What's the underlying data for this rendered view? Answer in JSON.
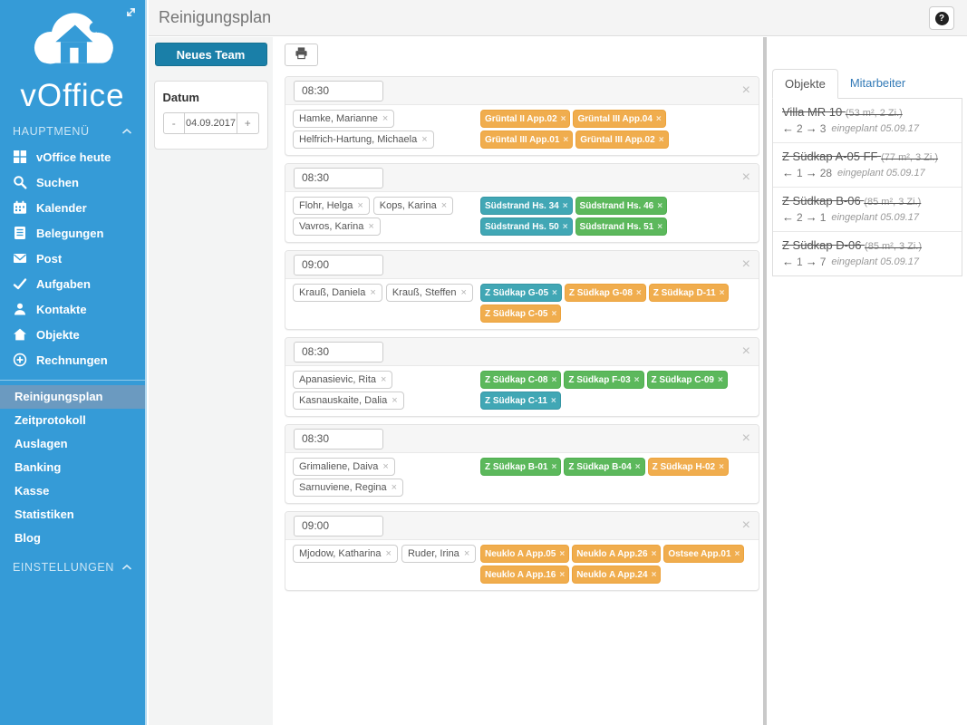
{
  "header": {
    "title": "Reinigungsplan",
    "help_icon": "help-icon"
  },
  "sidebar": {
    "brand": "vOffice",
    "logo_icon": "cloud-house-logo",
    "expand_icon": "expand-arrows-icon",
    "main_section": {
      "label": "HAUPTMENÜ",
      "collapse_icon": "chevron-up-icon"
    },
    "main_items": [
      {
        "icon": "grid-icon",
        "label": "vOffice heute"
      },
      {
        "icon": "search-icon",
        "label": "Suchen"
      },
      {
        "icon": "calendar-icon",
        "label": "Kalender"
      },
      {
        "icon": "document-icon",
        "label": "Belegungen"
      },
      {
        "icon": "mail-icon",
        "label": "Post"
      },
      {
        "icon": "check-icon",
        "label": "Aufgaben"
      },
      {
        "icon": "user-icon",
        "label": "Kontakte"
      },
      {
        "icon": "home-icon",
        "label": "Objekte"
      },
      {
        "icon": "plus-circle-icon",
        "label": "Rechnungen"
      }
    ],
    "sub_items": [
      {
        "label": "Reinigungsplan",
        "active": true
      },
      {
        "label": "Zeitprotokoll",
        "active": false
      },
      {
        "label": "Auslagen",
        "active": false
      },
      {
        "label": "Banking",
        "active": false
      },
      {
        "label": "Kasse",
        "active": false
      },
      {
        "label": "Statistiken",
        "active": false
      },
      {
        "label": "Blog",
        "active": false
      }
    ],
    "settings_section": {
      "label": "EINSTELLUNGEN",
      "collapse_icon": "chevron-up-icon"
    }
  },
  "toolbar": {
    "new_team_label": "Neues Team",
    "print_icon": "printer-icon"
  },
  "date_filter": {
    "label": "Datum",
    "value": "04.09.2017",
    "decrement_label": "-",
    "increment_label": "+"
  },
  "teams": [
    {
      "time": "08:30",
      "members": [
        "Hamke, Marianne",
        "Helfrich-Hartung, Michaela"
      ],
      "objects": [
        {
          "label": "Grüntal II App.02",
          "color": "orange"
        },
        {
          "label": "Grüntal III App.04",
          "color": "orange"
        },
        {
          "label": "Grüntal III App.01",
          "color": "orange"
        },
        {
          "label": "Grüntal III App.02",
          "color": "orange"
        }
      ]
    },
    {
      "time": "08:30",
      "members": [
        "Flohr, Helga",
        "Kops, Karina",
        "Vavros, Karina"
      ],
      "objects": [
        {
          "label": "Südstrand Hs. 34",
          "color": "teal"
        },
        {
          "label": "Südstrand Hs. 46",
          "color": "green"
        },
        {
          "label": "Südstrand Hs. 50",
          "color": "teal"
        },
        {
          "label": "Südstrand Hs. 51",
          "color": "green"
        }
      ]
    },
    {
      "time": "09:00",
      "members": [
        "Krauß, Daniela",
        "Krauß, Steffen"
      ],
      "objects": [
        {
          "label": "Z Südkap G-05",
          "color": "teal"
        },
        {
          "label": "Z Südkap G-08",
          "color": "orange"
        },
        {
          "label": "Z Südkap D-11",
          "color": "orange"
        },
        {
          "label": "Z Südkap C-05",
          "color": "orange"
        }
      ]
    },
    {
      "time": "08:30",
      "members": [
        "Apanasievic, Rita",
        "Kasnauskaite, Dalia"
      ],
      "objects": [
        {
          "label": "Z Südkap C-08",
          "color": "green"
        },
        {
          "label": "Z Südkap F-03",
          "color": "green"
        },
        {
          "label": "Z Südkap C-09",
          "color": "green"
        },
        {
          "label": "Z Südkap C-11",
          "color": "teal"
        }
      ]
    },
    {
      "time": "08:30",
      "members": [
        "Grimaliene, Daiva",
        "Sarnuviene, Regina"
      ],
      "objects": [
        {
          "label": "Z Südkap B-01",
          "color": "green"
        },
        {
          "label": "Z Südkap B-04",
          "color": "green"
        },
        {
          "label": "Z Südkap H-02",
          "color": "orange"
        }
      ]
    },
    {
      "time": "09:00",
      "members": [
        "Mjodow, Katharina",
        "Ruder, Irina"
      ],
      "objects": [
        {
          "label": "Neuklo A App.05",
          "color": "orange"
        },
        {
          "label": "Neuklo A App.26",
          "color": "orange"
        },
        {
          "label": "Ostsee App.01",
          "color": "orange"
        },
        {
          "label": "Neuklo A App.16",
          "color": "orange"
        },
        {
          "label": "Neuklo A App.24",
          "color": "orange"
        }
      ]
    }
  ],
  "right_panel": {
    "tabs": [
      {
        "label": "Objekte",
        "active": true
      },
      {
        "label": "Mitarbeiter",
        "active": false
      }
    ],
    "objects": [
      {
        "name": "Villa MR 10",
        "details": "(53 m², 2 Zi.)",
        "prev_count": "2",
        "next_count": "3",
        "note": "eingeplant 05.09.17"
      },
      {
        "name": "Z Südkap A-05 FF",
        "details": "(77 m², 3 Zi.)",
        "prev_count": "1",
        "next_count": "28",
        "note": "eingeplant 05.09.17"
      },
      {
        "name": "Z Südkap B-06",
        "details": "(85 m², 3 Zi.)",
        "prev_count": "2",
        "next_count": "1",
        "note": "eingeplant 05.09.17"
      },
      {
        "name": "Z Südkap D-06",
        "details": "(85 m², 3 Zi.)",
        "prev_count": "1",
        "next_count": "7",
        "note": "eingeplant 05.09.17"
      }
    ]
  },
  "colors": {
    "sidebar_blue": "#359bd7",
    "sidebar_selected": "#6b9ac0",
    "accent_teal": "#1a7fa8",
    "tag_orange": "#f0ad4e",
    "tag_orange_border": "#eca23b",
    "tag_green": "#5cb85c",
    "tag_green_border": "#4eae4e",
    "tag_teal": "#41a7b5",
    "tag_teal_border": "#3696a4",
    "link_blue": "#337ab7"
  }
}
